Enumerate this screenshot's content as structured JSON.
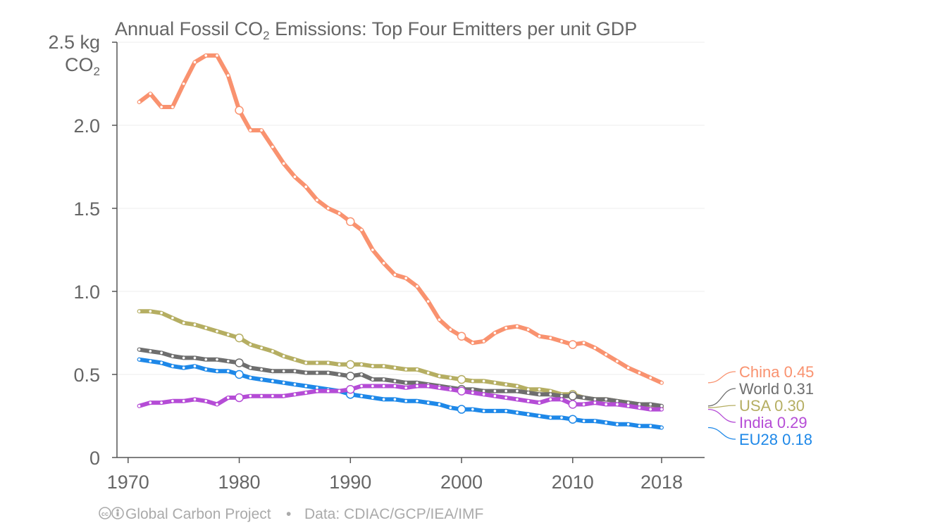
{
  "chart_data": {
    "type": "line",
    "title_main": "Annual Fossil CO",
    "title_sub": "2",
    "title_rest": " Emissions: Top Four Emitters per unit GDP",
    "ylabel_unit_line1": "2.5 kg",
    "ylabel_unit_line2_main": "CO",
    "ylabel_unit_line2_sub": "2",
    "ylim": [
      0,
      2.5
    ],
    "xlim": [
      1970,
      2022
    ],
    "yticks": [
      {
        "value": 0,
        "label": "0"
      },
      {
        "value": 0.5,
        "label": "0.5"
      },
      {
        "value": 1.0,
        "label": "1.0"
      },
      {
        "value": 1.5,
        "label": "1.5"
      },
      {
        "value": 2.0,
        "label": "2.0"
      }
    ],
    "xticks": [
      {
        "value": 1970,
        "label": "1970"
      },
      {
        "value": 1980,
        "label": "1980"
      },
      {
        "value": 1990,
        "label": "1990"
      },
      {
        "value": 2000,
        "label": "2000"
      },
      {
        "value": 2010,
        "label": "2010"
      },
      {
        "value": 2018,
        "label": "2018"
      }
    ],
    "x": [
      1971,
      1972,
      1973,
      1974,
      1975,
      1976,
      1977,
      1978,
      1979,
      1980,
      1981,
      1982,
      1983,
      1984,
      1985,
      1986,
      1987,
      1988,
      1989,
      1990,
      1991,
      1992,
      1993,
      1994,
      1995,
      1996,
      1997,
      1998,
      1999,
      2000,
      2001,
      2002,
      2003,
      2004,
      2005,
      2006,
      2007,
      2008,
      2009,
      2010,
      2011,
      2012,
      2013,
      2014,
      2015,
      2016,
      2017,
      2018
    ],
    "grid": true,
    "legend_placement": "right, at line ends",
    "series": [
      {
        "name": "China",
        "end_value_label": "0.45",
        "color": "#F9926F",
        "values": [
          2.14,
          2.19,
          2.11,
          2.11,
          2.25,
          2.38,
          2.42,
          2.42,
          2.3,
          2.09,
          1.97,
          1.97,
          1.87,
          1.77,
          1.69,
          1.63,
          1.55,
          1.5,
          1.47,
          1.42,
          1.37,
          1.25,
          1.17,
          1.1,
          1.08,
          1.03,
          0.94,
          0.83,
          0.77,
          0.73,
          0.69,
          0.7,
          0.75,
          0.78,
          0.79,
          0.77,
          0.73,
          0.72,
          0.7,
          0.68,
          0.69,
          0.66,
          0.62,
          0.58,
          0.54,
          0.51,
          0.48,
          0.45
        ]
      },
      {
        "name": "World",
        "end_value_label": "0.31",
        "color": "#6E6E6E",
        "values": [
          0.65,
          0.64,
          0.63,
          0.61,
          0.6,
          0.6,
          0.59,
          0.59,
          0.58,
          0.57,
          0.54,
          0.53,
          0.52,
          0.52,
          0.52,
          0.51,
          0.51,
          0.51,
          0.5,
          0.49,
          0.5,
          0.47,
          0.47,
          0.46,
          0.45,
          0.45,
          0.44,
          0.43,
          0.42,
          0.41,
          0.41,
          0.4,
          0.4,
          0.4,
          0.4,
          0.39,
          0.38,
          0.38,
          0.37,
          0.37,
          0.36,
          0.35,
          0.35,
          0.34,
          0.33,
          0.32,
          0.32,
          0.31
        ]
      },
      {
        "name": "USA",
        "end_value_label": "0.30",
        "color": "#B5AE62",
        "values": [
          0.88,
          0.88,
          0.87,
          0.84,
          0.81,
          0.8,
          0.78,
          0.76,
          0.74,
          0.72,
          0.68,
          0.66,
          0.64,
          0.61,
          0.59,
          0.57,
          0.57,
          0.57,
          0.56,
          0.56,
          0.56,
          0.55,
          0.55,
          0.54,
          0.53,
          0.53,
          0.51,
          0.49,
          0.48,
          0.47,
          0.46,
          0.46,
          0.45,
          0.44,
          0.43,
          0.41,
          0.41,
          0.4,
          0.38,
          0.38,
          0.36,
          0.35,
          0.35,
          0.34,
          0.33,
          0.32,
          0.31,
          0.3
        ]
      },
      {
        "name": "India",
        "end_value_label": "0.29",
        "color": "#B54CD6",
        "values": [
          0.31,
          0.33,
          0.33,
          0.34,
          0.34,
          0.35,
          0.34,
          0.32,
          0.36,
          0.36,
          0.37,
          0.37,
          0.37,
          0.37,
          0.38,
          0.39,
          0.4,
          0.4,
          0.4,
          0.41,
          0.43,
          0.43,
          0.43,
          0.43,
          0.42,
          0.43,
          0.43,
          0.42,
          0.41,
          0.4,
          0.39,
          0.38,
          0.37,
          0.36,
          0.35,
          0.34,
          0.33,
          0.35,
          0.35,
          0.32,
          0.32,
          0.33,
          0.32,
          0.32,
          0.31,
          0.3,
          0.29,
          0.29
        ]
      },
      {
        "name": "EU28",
        "end_value_label": "0.18",
        "color": "#1E88E8",
        "values": [
          0.59,
          0.58,
          0.57,
          0.55,
          0.54,
          0.55,
          0.53,
          0.52,
          0.52,
          0.5,
          0.48,
          0.47,
          0.46,
          0.45,
          0.44,
          0.43,
          0.42,
          0.41,
          0.4,
          0.38,
          0.37,
          0.36,
          0.35,
          0.35,
          0.34,
          0.34,
          0.33,
          0.32,
          0.3,
          0.29,
          0.29,
          0.28,
          0.28,
          0.28,
          0.27,
          0.26,
          0.25,
          0.24,
          0.24,
          0.23,
          0.22,
          0.22,
          0.21,
          0.2,
          0.2,
          0.19,
          0.19,
          0.18
        ]
      }
    ],
    "decade_markers": [
      1980,
      1990,
      2000,
      2010
    ]
  },
  "footer": {
    "cc_icon": "cc-icon",
    "by_icon": "by-icon",
    "source_org": "Global Carbon Project",
    "separator": "•",
    "data_credit": "Data: CDIAC/GCP/IEA/IMF"
  },
  "colors": {
    "axis": "#555555",
    "grid": "#e8e8e8",
    "title": "#666666",
    "footer": "#aaaaaa"
  }
}
